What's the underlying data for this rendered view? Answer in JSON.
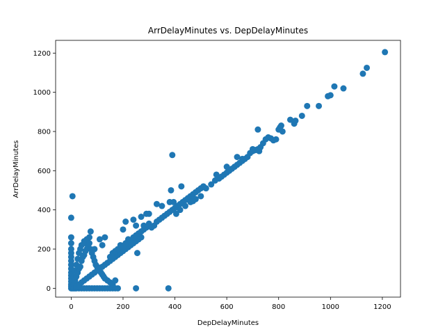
{
  "chart_data": {
    "type": "scatter",
    "title": "ArrDelayMinutes vs. DepDelayMinutes",
    "xlabel": "DepDelayMinutes",
    "ylabel": "ArrDelayMinutes",
    "xlim": [
      -60,
      1270
    ],
    "ylim": [
      -45,
      1265
    ],
    "xticks": [
      0,
      200,
      400,
      600,
      800,
      1000,
      1200
    ],
    "yticks": [
      0,
      200,
      400,
      600,
      800,
      1000,
      1200
    ],
    "grid": false,
    "marker_color": "#1f77b4",
    "series": [
      {
        "points": [
          [
            0,
            0
          ],
          [
            0,
            10
          ],
          [
            0,
            20
          ],
          [
            0,
            35
          ],
          [
            0,
            50
          ],
          [
            0,
            65
          ],
          [
            0,
            80
          ],
          [
            0,
            100
          ],
          [
            0,
            120
          ],
          [
            0,
            140
          ],
          [
            0,
            160
          ],
          [
            0,
            180
          ],
          [
            0,
            200
          ],
          [
            0,
            230
          ],
          [
            0,
            260
          ],
          [
            0,
            360
          ],
          [
            5,
            470
          ],
          [
            5,
            0
          ],
          [
            10,
            0
          ],
          [
            15,
            0
          ],
          [
            20,
            0
          ],
          [
            30,
            0
          ],
          [
            40,
            0
          ],
          [
            50,
            0
          ],
          [
            60,
            0
          ],
          [
            70,
            0
          ],
          [
            80,
            0
          ],
          [
            90,
            0
          ],
          [
            100,
            0
          ],
          [
            110,
            0
          ],
          [
            120,
            0
          ],
          [
            130,
            0
          ],
          [
            140,
            0
          ],
          [
            150,
            0
          ],
          [
            160,
            0
          ],
          [
            170,
            0
          ],
          [
            180,
            0
          ],
          [
            250,
            0
          ],
          [
            375,
            0
          ],
          [
            5,
            30
          ],
          [
            10,
            60
          ],
          [
            15,
            90
          ],
          [
            20,
            120
          ],
          [
            25,
            150
          ],
          [
            30,
            180
          ],
          [
            35,
            200
          ],
          [
            40,
            220
          ],
          [
            50,
            240
          ],
          [
            55,
            230
          ],
          [
            60,
            250
          ],
          [
            70,
            260
          ],
          [
            75,
            290
          ],
          [
            90,
            200
          ],
          [
            110,
            250
          ],
          [
            120,
            220
          ],
          [
            130,
            260
          ],
          [
            10,
            20
          ],
          [
            15,
            40
          ],
          [
            20,
            60
          ],
          [
            25,
            80
          ],
          [
            30,
            100
          ],
          [
            35,
            110
          ],
          [
            40,
            140
          ],
          [
            45,
            160
          ],
          [
            50,
            170
          ],
          [
            55,
            190
          ],
          [
            60,
            200
          ],
          [
            65,
            210
          ],
          [
            70,
            230
          ],
          [
            75,
            200
          ],
          [
            80,
            180
          ],
          [
            85,
            160
          ],
          [
            90,
            140
          ],
          [
            95,
            120
          ],
          [
            100,
            110
          ],
          [
            105,
            100
          ],
          [
            110,
            90
          ],
          [
            115,
            80
          ],
          [
            120,
            70
          ],
          [
            125,
            60
          ],
          [
            130,
            50
          ],
          [
            140,
            40
          ],
          [
            150,
            30
          ],
          [
            160,
            20
          ],
          [
            170,
            40
          ],
          [
            20,
            10
          ],
          [
            30,
            20
          ],
          [
            40,
            30
          ],
          [
            50,
            40
          ],
          [
            60,
            50
          ],
          [
            70,
            60
          ],
          [
            80,
            70
          ],
          [
            90,
            80
          ],
          [
            100,
            90
          ],
          [
            110,
            100
          ],
          [
            120,
            110
          ],
          [
            130,
            120
          ],
          [
            140,
            130
          ],
          [
            150,
            140
          ],
          [
            160,
            150
          ],
          [
            170,
            160
          ],
          [
            180,
            170
          ],
          [
            190,
            180
          ],
          [
            200,
            190
          ],
          [
            210,
            200
          ],
          [
            220,
            210
          ],
          [
            230,
            220
          ],
          [
            240,
            230
          ],
          [
            250,
            240
          ],
          [
            260,
            250
          ],
          [
            270,
            260
          ],
          [
            150,
            160
          ],
          [
            160,
            180
          ],
          [
            170,
            190
          ],
          [
            180,
            200
          ],
          [
            190,
            220
          ],
          [
            200,
            210
          ],
          [
            210,
            230
          ],
          [
            220,
            250
          ],
          [
            230,
            240
          ],
          [
            240,
            260
          ],
          [
            250,
            270
          ],
          [
            260,
            280
          ],
          [
            270,
            290
          ],
          [
            280,
            300
          ],
          [
            290,
            310
          ],
          [
            300,
            320
          ],
          [
            200,
            300
          ],
          [
            210,
            340
          ],
          [
            240,
            350
          ],
          [
            270,
            365
          ],
          [
            250,
            320
          ],
          [
            280,
            320
          ],
          [
            300,
            330
          ],
          [
            310,
            310
          ],
          [
            320,
            320
          ],
          [
            330,
            340
          ],
          [
            340,
            350
          ],
          [
            350,
            360
          ],
          [
            360,
            370
          ],
          [
            370,
            380
          ],
          [
            380,
            390
          ],
          [
            390,
            400
          ],
          [
            400,
            410
          ],
          [
            410,
            420
          ],
          [
            420,
            430
          ],
          [
            430,
            440
          ],
          [
            440,
            450
          ],
          [
            450,
            460
          ],
          [
            460,
            470
          ],
          [
            470,
            480
          ],
          [
            480,
            490
          ],
          [
            490,
            500
          ],
          [
            500,
            510
          ],
          [
            510,
            520
          ],
          [
            290,
            380
          ],
          [
            300,
            380
          ],
          [
            330,
            430
          ],
          [
            350,
            420
          ],
          [
            395,
            440
          ],
          [
            405,
            380
          ],
          [
            420,
            400
          ],
          [
            440,
            420
          ],
          [
            460,
            440
          ],
          [
            470,
            445
          ],
          [
            480,
            455
          ],
          [
            500,
            470
          ],
          [
            255,
            180
          ],
          [
            390,
            680
          ],
          [
            385,
            500
          ],
          [
            425,
            520
          ],
          [
            380,
            440
          ],
          [
            520,
            510
          ],
          [
            540,
            530
          ],
          [
            555,
            550
          ],
          [
            570,
            560
          ],
          [
            580,
            570
          ],
          [
            590,
            580
          ],
          [
            600,
            590
          ],
          [
            610,
            600
          ],
          [
            620,
            610
          ],
          [
            630,
            620
          ],
          [
            640,
            630
          ],
          [
            650,
            640
          ],
          [
            660,
            650
          ],
          [
            670,
            660
          ],
          [
            680,
            670
          ],
          [
            690,
            690
          ],
          [
            700,
            700
          ],
          [
            710,
            705
          ],
          [
            720,
            710
          ],
          [
            730,
            720
          ],
          [
            560,
            580
          ],
          [
            600,
            620
          ],
          [
            640,
            670
          ],
          [
            660,
            660
          ],
          [
            700,
            710
          ],
          [
            720,
            810
          ],
          [
            725,
            700
          ],
          [
            740,
            740
          ],
          [
            750,
            760
          ],
          [
            760,
            770
          ],
          [
            770,
            765
          ],
          [
            780,
            755
          ],
          [
            790,
            760
          ],
          [
            800,
            810
          ],
          [
            805,
            820
          ],
          [
            810,
            830
          ],
          [
            815,
            800
          ],
          [
            845,
            860
          ],
          [
            860,
            840
          ],
          [
            865,
            855
          ],
          [
            890,
            880
          ],
          [
            910,
            930
          ],
          [
            955,
            930
          ],
          [
            990,
            980
          ],
          [
            1000,
            985
          ],
          [
            1015,
            1030
          ],
          [
            1050,
            1020
          ],
          [
            1125,
            1095
          ],
          [
            1140,
            1125
          ],
          [
            1210,
            1205
          ]
        ]
      }
    ]
  }
}
